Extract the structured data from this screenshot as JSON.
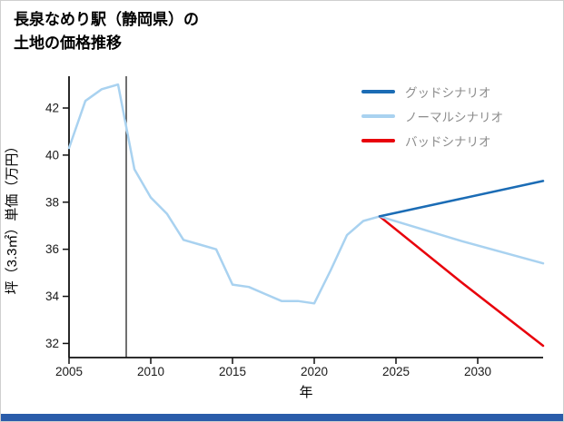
{
  "page": {
    "title_line1": "長泉なめり駅（静岡県）の",
    "title_line2": "土地の価格推移",
    "footer_bar_color": "#2a5caa"
  },
  "chart_data": {
    "type": "line",
    "title": "長泉なめり駅（静岡県）の土地の価格推移",
    "xlabel": "年",
    "ylabel": "坪（3.3㎡）単価（万円）",
    "xlim": [
      2005,
      2034
    ],
    "ylim": [
      31.4,
      43.35
    ],
    "x_ticks": [
      2005,
      2010,
      2015,
      2020,
      2025,
      2030
    ],
    "y_ticks": [
      32,
      34,
      36,
      38,
      40,
      42
    ],
    "grid": false,
    "legend_position": "upper right",
    "reference_line_x": 2008.5,
    "legend": [
      {
        "label": "グッドシナリオ",
        "color": "#1b6cb5"
      },
      {
        "label": "ノーマルシナリオ",
        "color": "#a9d2f0"
      },
      {
        "label": "バッドシナリオ",
        "color": "#e8000b"
      }
    ],
    "series": [
      {
        "id": "history",
        "label": "",
        "color": "#a9d2f0",
        "points": [
          [
            2005,
            40.3
          ],
          [
            2006,
            42.3
          ],
          [
            2007,
            42.8
          ],
          [
            2008,
            43.0
          ],
          [
            2009,
            39.4
          ],
          [
            2010,
            38.2
          ],
          [
            2011,
            37.5
          ],
          [
            2012,
            36.4
          ],
          [
            2013,
            36.2
          ],
          [
            2014,
            36.0
          ],
          [
            2015,
            34.5
          ],
          [
            2016,
            34.4
          ],
          [
            2017,
            34.1
          ],
          [
            2018,
            33.8
          ],
          [
            2019,
            33.8
          ],
          [
            2020,
            33.7
          ],
          [
            2021,
            35.1
          ],
          [
            2022,
            36.6
          ],
          [
            2023,
            37.2
          ],
          [
            2024,
            37.4
          ]
        ]
      },
      {
        "id": "bad",
        "label": "バッドシナリオ",
        "color": "#e8000b",
        "points": [
          [
            2024,
            37.4
          ],
          [
            2029,
            34.6
          ],
          [
            2034,
            31.9
          ]
        ]
      },
      {
        "id": "normal",
        "label": "ノーマルシナリオ",
        "color": "#a9d2f0",
        "points": [
          [
            2024,
            37.4
          ],
          [
            2029,
            36.35
          ],
          [
            2034,
            35.4
          ]
        ]
      },
      {
        "id": "good",
        "label": "グッドシナリオ",
        "color": "#1b6cb5",
        "points": [
          [
            2024,
            37.4
          ],
          [
            2029,
            38.15
          ],
          [
            2034,
            38.9
          ]
        ]
      }
    ]
  }
}
